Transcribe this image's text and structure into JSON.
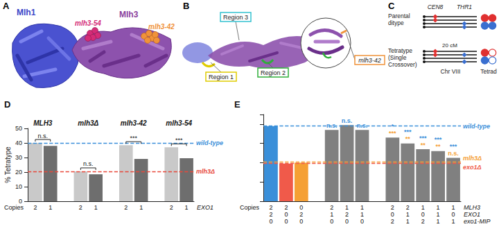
{
  "panel_a": {
    "label": "A",
    "texts": [
      {
        "text": "Mlh1",
        "color": "#3b44c8"
      },
      {
        "text": "Mlh3",
        "color": "#8a3f9c"
      },
      {
        "text": "mlh3-54",
        "color": "#d42c78"
      },
      {
        "text": "mlh3-42",
        "color": "#f0923a"
      }
    ]
  },
  "panel_b": {
    "label": "B",
    "regions": [
      {
        "text": "Region 1",
        "color": "#e0cc00"
      },
      {
        "text": "Region 2",
        "color": "#2fae3a"
      },
      {
        "text": "Region 3",
        "color": "#35c2d0"
      }
    ],
    "inset_label": {
      "text": "mlh3-42",
      "color": "#f0923a"
    }
  },
  "panel_c": {
    "label": "C",
    "markers": [
      {
        "text": "CEN8",
        "color": "#e03030"
      },
      {
        "text": "THR1",
        "color": "#3a6fd0"
      }
    ],
    "classes": [
      "Parental ditype",
      "Tetratype (Single Crossover)"
    ],
    "distance": "20 cM",
    "chromosome": "Chr VIII",
    "tetrad": "Tetrad"
  },
  "chart_data": [
    {
      "label": "D",
      "type": "bar",
      "ylabel": "% Tetratype",
      "groups": [
        "MLH3",
        "mlh3Δ",
        "mlh3-42",
        "mlh3-54"
      ],
      "categories": [
        null,
        null,
        null,
        null,
        null,
        null,
        null,
        null,
        null,
        null,
        null
      ],
      "values": [
        40,
        38,
        null,
        20.5,
        18.5,
        null,
        38.5,
        29,
        null,
        37,
        29.5
      ],
      "colors": [
        "#c9c9c9",
        "#6e6e6e",
        null,
        "#c9c9c9",
        "#6e6e6e",
        null,
        "#c9c9c9",
        "#6e6e6e",
        null,
        "#c9c9c9",
        "#6e6e6e"
      ],
      "ylim": [
        0,
        50
      ],
      "yticks": [
        0,
        10,
        20,
        30,
        40,
        50
      ],
      "grid": false,
      "tick_labels": "y",
      "reference_lines": [
        {
          "label": "wild-type",
          "value": 40,
          "color": "#3a8fd9"
        },
        {
          "label": "mlh3Δ",
          "value": 20.5,
          "color": "#e8483b"
        }
      ],
      "annotations": [
        "n.s.",
        "n.s.",
        "***",
        "***"
      ],
      "table": {
        "header": "Copies",
        "rows": [
          {
            "name": "EXO1",
            "values": [
              2,
              1,
              null,
              2,
              1,
              null,
              2,
              1,
              null,
              2,
              1
            ]
          }
        ]
      }
    },
    {
      "label": "E",
      "type": "bar",
      "categories": [
        null,
        null,
        null,
        null,
        null,
        null,
        null,
        null,
        null,
        null,
        null,
        null,
        null
      ],
      "values": [
        39,
        19.5,
        20,
        null,
        37,
        39.5,
        37,
        null,
        33,
        30,
        27,
        26,
        22.5
      ],
      "colors": [
        "#3a8fd9",
        "#f05a4a",
        "#f5a035",
        null,
        "#808080",
        "#808080",
        "#808080",
        null,
        "#808080",
        "#808080",
        "#808080",
        "#808080",
        "#808080"
      ],
      "ylim": [
        0,
        45
      ],
      "yticks": [
        0,
        10,
        20,
        30,
        40
      ],
      "grid": false,
      "tick_labels": false,
      "reference_lines": [
        {
          "label": "wild-type",
          "value": 39,
          "color": "#3a8fd9"
        },
        {
          "label": "mlh3Δ",
          "value": 20.3,
          "color": "#f5a035"
        },
        {
          "label": "exo1Δ",
          "value": 19.7,
          "color": "#f05a4a"
        }
      ],
      "annotations": [
        {
          "color": "#f5a035",
          "labels": [
            null,
            null,
            null,
            null,
            null,
            null,
            null,
            null,
            "***",
            "**",
            "**",
            "**",
            "n.s."
          ]
        },
        {
          "color": "#3a8fd9",
          "labels": [
            null,
            null,
            null,
            null,
            "n.s.",
            "n.s.",
            "n.s.",
            null,
            "*",
            "***",
            "***",
            "***",
            "***"
          ]
        }
      ],
      "table": {
        "header": "Copies",
        "rows": [
          {
            "name": "MLH3",
            "values": [
              2,
              2,
              0,
              null,
              2,
              1,
              1,
              null,
              2,
              2,
              1,
              1,
              1
            ]
          },
          {
            "name": "EXO1",
            "values": [
              2,
              0,
              2,
              null,
              1,
              2,
              1,
              null,
              0,
              1,
              0,
              1,
              0
            ]
          },
          {
            "name": "exo1-MIP",
            "values": [
              0,
              0,
              0,
              null,
              0,
              0,
              0,
              null,
              2,
              1,
              2,
              1,
              1
            ]
          }
        ]
      }
    }
  ]
}
